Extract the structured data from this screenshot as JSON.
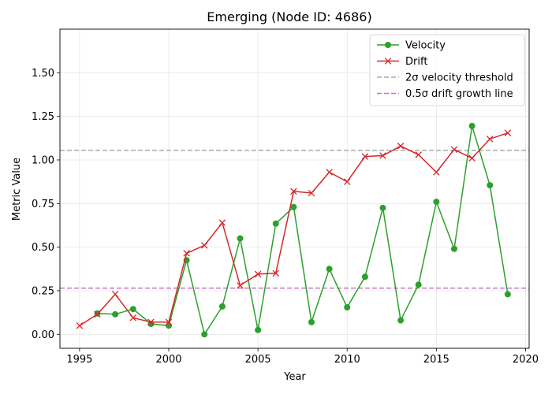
{
  "chart_data": {
    "type": "line",
    "title": "Emerging (Node ID: 4686)",
    "xlabel": "Year",
    "ylabel": "Metric Value",
    "xlim": [
      1993.9,
      2020.2
    ],
    "ylim": [
      -0.08,
      1.75
    ],
    "x_ticks": [
      1995,
      2000,
      2005,
      2010,
      2015,
      2020
    ],
    "y_ticks": [
      0.0,
      0.25,
      0.5,
      0.75,
      1.0,
      1.25,
      1.5
    ],
    "x_tick_labels": [
      "1995",
      "2000",
      "2005",
      "2010",
      "2015",
      "2020"
    ],
    "y_tick_labels": [
      "0.00",
      "0.25",
      "0.50",
      "0.75",
      "1.00",
      "1.25",
      "1.50"
    ],
    "grid": true,
    "legend_position": "upper right",
    "series": [
      {
        "name": "Velocity",
        "color": "#2ca02c",
        "marker": "circle",
        "x": [
          1996,
          1997,
          1998,
          1999,
          2000,
          2001,
          2002,
          2003,
          2004,
          2005,
          2006,
          2007,
          2008,
          2009,
          2010,
          2011,
          2012,
          2013,
          2014,
          2015,
          2016,
          2017,
          2018,
          2019
        ],
        "values": [
          0.12,
          0.115,
          0.145,
          0.06,
          0.05,
          0.425,
          0.0,
          0.16,
          0.55,
          0.025,
          0.635,
          0.73,
          0.07,
          0.375,
          0.155,
          0.33,
          0.725,
          0.08,
          0.285,
          0.76,
          0.49,
          1.195,
          0.855,
          0.23
        ]
      },
      {
        "name": "Drift",
        "color": "#d62728",
        "marker": "x",
        "x": [
          1995,
          1996,
          1997,
          1998,
          1999,
          2000,
          2001,
          2002,
          2003,
          2004,
          2005,
          2006,
          2007,
          2008,
          2009,
          2010,
          2011,
          2012,
          2013,
          2014,
          2015,
          2016,
          2017,
          2018,
          2019
        ],
        "values": [
          0.05,
          0.115,
          0.23,
          0.095,
          0.07,
          0.07,
          0.465,
          0.51,
          0.64,
          0.28,
          0.345,
          0.35,
          0.82,
          0.81,
          0.93,
          0.875,
          1.02,
          1.025,
          1.08,
          1.03,
          0.93,
          1.06,
          1.01,
          1.12,
          1.155
        ]
      }
    ],
    "reference_lines": [
      {
        "name": "2σ velocity threshold",
        "y": 1.055,
        "color": "#a9a9a9",
        "style": "dashed"
      },
      {
        "name": "0.5σ drift growth line",
        "y": 0.265,
        "color": "#c175c1",
        "style": "dashed"
      }
    ]
  }
}
